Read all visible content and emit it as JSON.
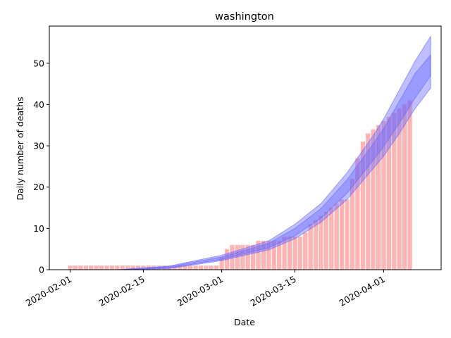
{
  "chart_data": {
    "type": "bar",
    "title": "washington",
    "xlabel": "Date",
    "ylabel": "Daily number of deaths",
    "x_tick_labels": [
      "2020-02-01",
      "2020-02-15",
      "2020-03-01",
      "2020-03-15",
      "2020-04-01"
    ],
    "y_tick_labels": [
      "0",
      "10",
      "20",
      "30",
      "40",
      "50"
    ],
    "ylim": [
      0,
      59
    ],
    "xlim": [
      "2020-01-28",
      "2020-04-12"
    ],
    "bar_start_date": "2020-02-01",
    "bar_values": [
      1,
      1,
      1,
      1,
      1,
      1,
      1,
      1,
      1,
      1,
      1,
      1,
      1,
      1,
      1,
      1,
      1,
      1,
      1,
      1,
      1,
      1,
      1,
      1,
      1,
      1,
      1,
      1,
      1,
      3,
      5,
      6,
      6,
      6,
      6,
      6,
      7,
      7,
      7,
      7,
      7,
      8,
      8,
      8,
      8,
      9,
      11,
      12,
      13,
      14,
      15,
      16,
      17,
      17,
      22,
      27,
      31,
      33,
      34,
      35,
      36,
      37,
      38,
      39,
      40,
      41
    ],
    "band_outer": [
      {
        "x": "2020-02-10",
        "lo": 0.0,
        "hi": 0.0
      },
      {
        "x": "2020-02-20",
        "lo": 0.3,
        "hi": 0.9
      },
      {
        "x": "2020-03-01",
        "lo": 2.2,
        "hi": 3.5
      },
      {
        "x": "2020-03-10",
        "lo": 4.8,
        "hi": 7.0
      },
      {
        "x": "2020-03-15",
        "lo": 7.5,
        "hi": 11.0
      },
      {
        "x": "2020-03-20",
        "lo": 11.5,
        "hi": 16.0
      },
      {
        "x": "2020-03-25",
        "lo": 17.0,
        "hi": 23.5
      },
      {
        "x": "2020-03-30",
        "lo": 24.5,
        "hi": 32.5
      },
      {
        "x": "2020-04-01",
        "lo": 27.5,
        "hi": 36.5
      },
      {
        "x": "2020-04-04",
        "lo": 33.0,
        "hi": 43.5
      },
      {
        "x": "2020-04-07",
        "lo": 39.0,
        "hi": 50.5
      },
      {
        "x": "2020-04-10",
        "lo": 44.0,
        "hi": 56.5
      }
    ],
    "band_inner": [
      {
        "x": "2020-02-10",
        "lo": 0.0,
        "hi": 0.0
      },
      {
        "x": "2020-02-20",
        "lo": 0.4,
        "hi": 0.7
      },
      {
        "x": "2020-03-01",
        "lo": 2.5,
        "hi": 3.1
      },
      {
        "x": "2020-03-10",
        "lo": 5.3,
        "hi": 6.4
      },
      {
        "x": "2020-03-15",
        "lo": 8.2,
        "hi": 10.0
      },
      {
        "x": "2020-03-20",
        "lo": 12.5,
        "hi": 14.8
      },
      {
        "x": "2020-03-25",
        "lo": 18.5,
        "hi": 21.8
      },
      {
        "x": "2020-03-30",
        "lo": 26.5,
        "hi": 30.5
      },
      {
        "x": "2020-04-01",
        "lo": 29.8,
        "hi": 34.2
      },
      {
        "x": "2020-04-04",
        "lo": 35.5,
        "hi": 40.8
      },
      {
        "x": "2020-04-07",
        "lo": 41.5,
        "hi": 47.5
      },
      {
        "x": "2020-04-10",
        "lo": 47.0,
        "hi": 52.0
      }
    ],
    "bar_color": "#ffb3b3",
    "band_color": "#6666ff",
    "grid": false,
    "legend": "none"
  }
}
